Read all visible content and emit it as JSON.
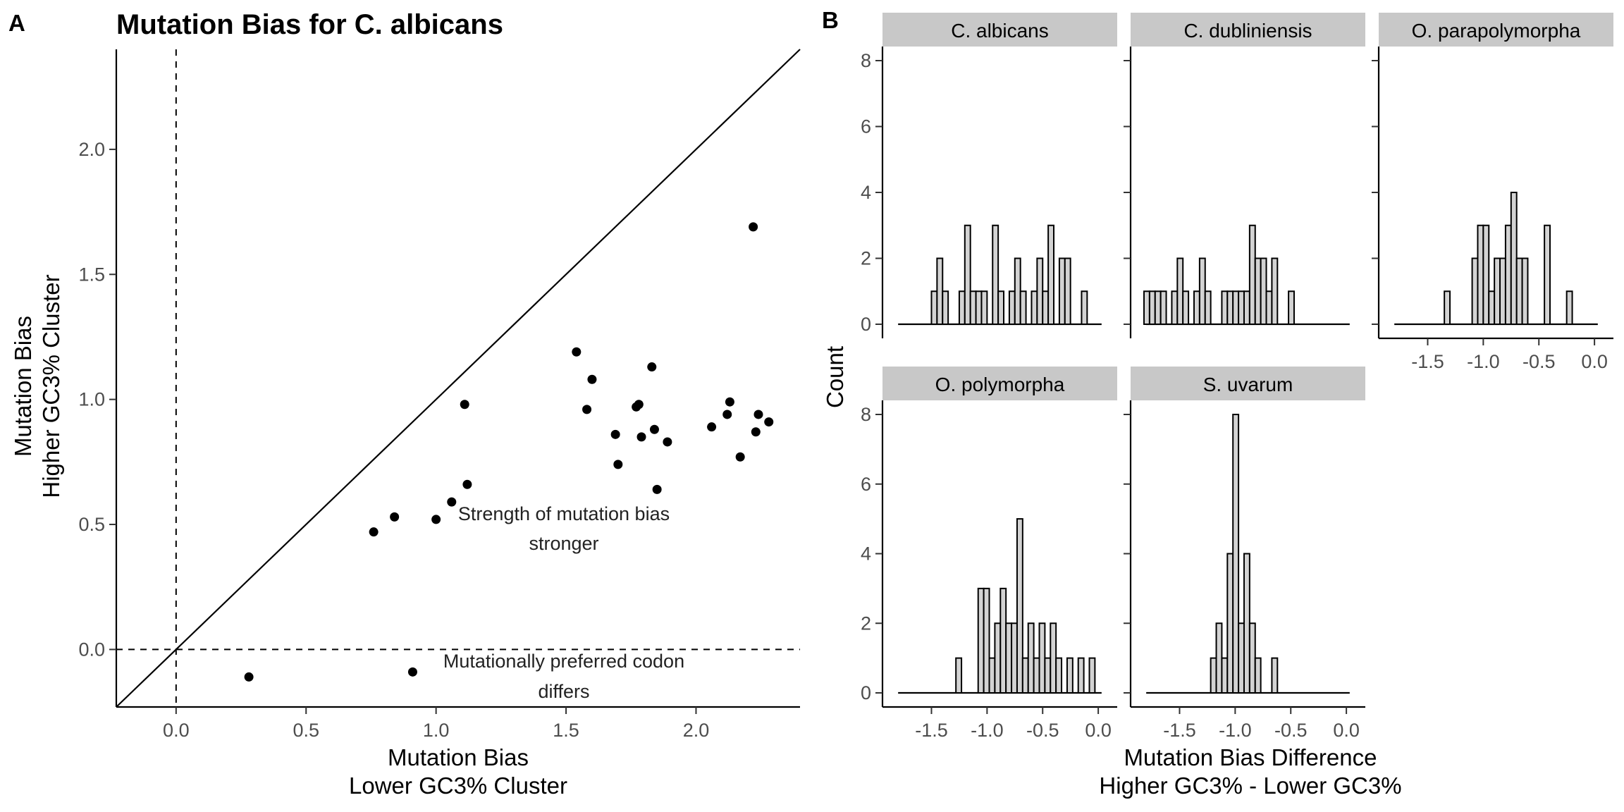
{
  "panel_a": {
    "letter": "A",
    "title": "Mutation Bias for C. albicans",
    "xlabel_line1": "Mutation Bias",
    "xlabel_line2": "Lower GC3% Cluster",
    "ylabel_line1": "Mutation Bias",
    "ylabel_line2": "Higher GC3% Cluster",
    "annotation_1_line1": "Strength of mutation bias",
    "annotation_1_line2": "stronger",
    "annotation_2_line1": "Mutationally preferred codon",
    "annotation_2_line2": "differs"
  },
  "panel_b": {
    "letter": "B",
    "ylabel": "Count",
    "xlabel_line1": "Mutation Bias Difference",
    "xlabel_line2": "Higher GC3% - Lower GC3%"
  },
  "chart_data": [
    {
      "type": "scatter",
      "title": "Mutation Bias for C. albicans",
      "xlabel": "Mutation Bias\nLower GC3% Cluster",
      "ylabel": "Mutation Bias\nHigher GC3% Cluster",
      "xlim": [
        -0.23,
        2.4
      ],
      "ylim": [
        -0.23,
        2.4
      ],
      "xticks": [
        "0.0",
        "0.5",
        "1.0",
        "1.5",
        "2.0"
      ],
      "yticks": [
        "0.0",
        "0.5",
        "1.0",
        "1.5",
        "2.0"
      ],
      "reference_lines": [
        "y = x",
        "x = 0 (dashed)",
        "y = 0 (dashed)"
      ],
      "points": [
        {
          "x": 0.28,
          "y": -0.11
        },
        {
          "x": 0.91,
          "y": -0.09
        },
        {
          "x": 0.76,
          "y": 0.47
        },
        {
          "x": 0.84,
          "y": 0.53
        },
        {
          "x": 1.0,
          "y": 0.52
        },
        {
          "x": 1.06,
          "y": 0.59
        },
        {
          "x": 1.11,
          "y": 0.98
        },
        {
          "x": 1.12,
          "y": 0.66
        },
        {
          "x": 1.54,
          "y": 1.19
        },
        {
          "x": 1.58,
          "y": 0.96
        },
        {
          "x": 1.6,
          "y": 1.08
        },
        {
          "x": 1.69,
          "y": 0.86
        },
        {
          "x": 1.7,
          "y": 0.74
        },
        {
          "x": 1.77,
          "y": 0.97
        },
        {
          "x": 1.78,
          "y": 0.98
        },
        {
          "x": 1.79,
          "y": 0.85
        },
        {
          "x": 1.83,
          "y": 1.13
        },
        {
          "x": 1.84,
          "y": 0.88
        },
        {
          "x": 1.85,
          "y": 0.64
        },
        {
          "x": 1.89,
          "y": 0.83
        },
        {
          "x": 2.06,
          "y": 0.89
        },
        {
          "x": 2.12,
          "y": 0.94
        },
        {
          "x": 2.13,
          "y": 0.99
        },
        {
          "x": 2.17,
          "y": 0.77
        },
        {
          "x": 2.22,
          "y": 1.69
        },
        {
          "x": 2.23,
          "y": 0.87
        },
        {
          "x": 2.24,
          "y": 0.94
        },
        {
          "x": 2.28,
          "y": 0.91
        }
      ]
    },
    {
      "type": "histogram",
      "facets": true,
      "xlabel": "Mutation Bias Difference\nHigher GC3% - Lower GC3%",
      "ylabel": "Count",
      "xlim": [
        -1.82,
        0.05
      ],
      "ylim": [
        0,
        8.3
      ],
      "bin_width": 0.05,
      "xticks": [
        "-1.5",
        "-1.0",
        "-0.5",
        "0.0"
      ],
      "yticks": [
        "0",
        "2",
        "4",
        "6",
        "8"
      ],
      "panels": [
        {
          "name": "C. albicans",
          "bin_start": -1.5,
          "counts": [
            1,
            2,
            1,
            0,
            0,
            1,
            3,
            1,
            1,
            1,
            0,
            3,
            1,
            0,
            1,
            2,
            1,
            0,
            1,
            2,
            1,
            3,
            0,
            2,
            2,
            0,
            0,
            1
          ]
        },
        {
          "name": "C. dubliniensis",
          "bin_start": -1.82,
          "counts": [
            1,
            1,
            1,
            1,
            0,
            1,
            2,
            1,
            0,
            1,
            2,
            1,
            0,
            0,
            1,
            1,
            1,
            1,
            1,
            3,
            2,
            2,
            1,
            2,
            0,
            0,
            1
          ]
        },
        {
          "name": "O. parapolymorpha",
          "bin_start": -1.35,
          "counts": [
            1,
            0,
            0,
            0,
            0,
            2,
            3,
            3,
            1,
            2,
            2,
            3,
            4,
            2,
            2,
            0,
            0,
            0,
            3,
            0,
            0,
            0,
            1,
            0,
            0,
            0,
            0
          ]
        },
        {
          "name": "O. polymorpha",
          "bin_start": -1.28,
          "counts": [
            1,
            0,
            0,
            0,
            3,
            3,
            1,
            2,
            3,
            2,
            2,
            5,
            1,
            2,
            1,
            2,
            1,
            2,
            1,
            0,
            1,
            0,
            1,
            0,
            1
          ]
        },
        {
          "name": "S. uvarum",
          "bin_start": -1.22,
          "counts": [
            1,
            2,
            1,
            4,
            8,
            2,
            4,
            2,
            1,
            0,
            0,
            1
          ]
        }
      ]
    }
  ]
}
